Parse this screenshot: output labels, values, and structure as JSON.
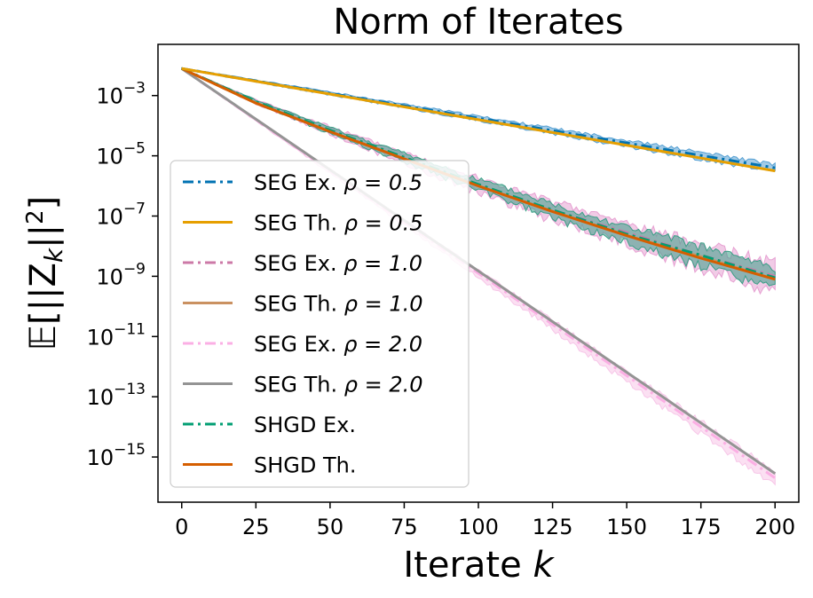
{
  "chart_data": {
    "type": "line",
    "title": "Norm of Iterates",
    "xlabel": "Iterate k",
    "ylabel": "E[||Z_k||^2]",
    "xlim": [
      -8,
      208
    ],
    "ylim_log10": [
      -16.5,
      -1.3
    ],
    "y_scale": "log",
    "x_ticks": [
      0,
      25,
      50,
      75,
      100,
      125,
      150,
      175,
      200
    ],
    "y_ticks": [
      {
        "exp": -3,
        "base": "10",
        "sup": "−3"
      },
      {
        "exp": -5,
        "base": "10",
        "sup": "−5"
      },
      {
        "exp": -7,
        "base": "10",
        "sup": "−7"
      },
      {
        "exp": -9,
        "base": "10",
        "sup": "−9"
      },
      {
        "exp": -11,
        "base": "10",
        "sup": "−11"
      },
      {
        "exp": -13,
        "base": "10",
        "sup": "−13"
      },
      {
        "exp": -15,
        "base": "10",
        "sup": "−15"
      }
    ],
    "legend_position": "center-left",
    "series": [
      {
        "name": "SEG Ex. ρ = 0.5",
        "label_main": "SEG Ex. ",
        "label_rho": "ρ = 0.5",
        "style": "dashdot",
        "color": "#0072b2",
        "x": [
          0,
          200
        ],
        "y_log10": [
          -2.1,
          -5.4
        ],
        "band_log10": [
          [
            -2.1,
            -2.1
          ],
          [
            -5.25,
            -5.6
          ]
        ],
        "band_color": "#56a0d3"
      },
      {
        "name": "SEG Th. ρ = 0.5",
        "label_main": "SEG Th. ",
        "label_rho": "ρ = 0.5",
        "style": "solid",
        "color": "#e69f00",
        "x": [
          0,
          200
        ],
        "y_log10": [
          -2.1,
          -5.5
        ]
      },
      {
        "name": "SEG Ex. ρ = 1.0",
        "label_main": "SEG Ex. ",
        "label_rho": "ρ = 1.0",
        "style": "dashdot",
        "color": "#cc79a7",
        "x": [
          0,
          25,
          50,
          75,
          100,
          125,
          150,
          175,
          200
        ],
        "y_log10": [
          -2.1,
          -3.2,
          -4.15,
          -5.05,
          -5.95,
          -6.8,
          -7.55,
          -8.3,
          -9.0
        ],
        "band_log10": [
          [
            -2.1,
            -2.1
          ],
          [
            -8.8,
            -9.5
          ]
        ],
        "band_color": "#e6a0d2"
      },
      {
        "name": "SEG Th. ρ = 1.0",
        "label_main": "SEG Th. ",
        "label_rho": "ρ = 1.0",
        "style": "solid",
        "color": "#ca9161",
        "x": [
          0,
          25,
          50,
          75,
          100,
          125,
          150,
          175,
          200
        ],
        "y_log10": [
          -2.1,
          -3.25,
          -4.2,
          -5.1,
          -6.0,
          -6.85,
          -7.65,
          -8.35,
          -9.1
        ]
      },
      {
        "name": "SEG Ex. ρ = 2.0",
        "label_main": "SEG Ex. ",
        "label_rho": "ρ = 2.0",
        "style": "dashdot",
        "color": "#fbafe4",
        "x": [
          0,
          200
        ],
        "y_log10": [
          -2.1,
          -15.7
        ],
        "band_color": "#f7c6e8"
      },
      {
        "name": "SEG Th. ρ = 2.0",
        "label_main": "SEG Th. ",
        "label_rho": "ρ = 2.0",
        "style": "solid",
        "color": "#949494",
        "x": [
          0,
          200
        ],
        "y_log10": [
          -2.1,
          -15.55
        ]
      },
      {
        "name": "SHGD Ex.",
        "label_main": "SHGD Ex.",
        "label_rho": "",
        "style": "dashdot",
        "color": "#029e73",
        "x": [
          0,
          25,
          50,
          75,
          100,
          125,
          150,
          175,
          200
        ],
        "y_log10": [
          -2.1,
          -3.2,
          -4.15,
          -5.05,
          -5.95,
          -6.8,
          -7.6,
          -8.3,
          -9.05
        ],
        "band_color": "#3a9e86"
      },
      {
        "name": "SHGD Th.",
        "label_main": "SHGD Th.",
        "label_rho": "",
        "style": "solid",
        "color": "#d55e00",
        "x": [
          0,
          25,
          50,
          75,
          100,
          125,
          150,
          175,
          200
        ],
        "y_log10": [
          -2.1,
          -3.25,
          -4.2,
          -5.1,
          -6.0,
          -6.85,
          -7.65,
          -8.4,
          -9.1
        ]
      }
    ]
  }
}
